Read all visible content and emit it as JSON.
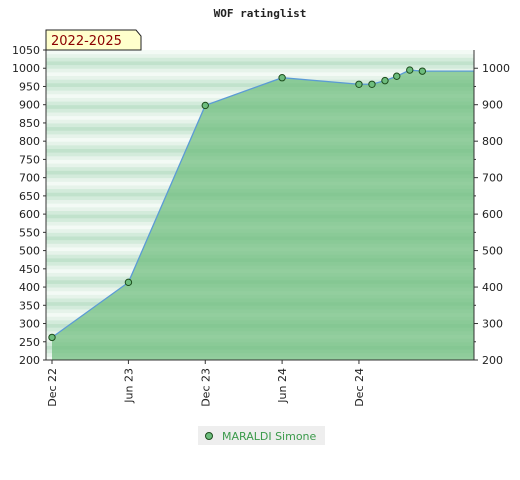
{
  "chart_data": {
    "type": "area",
    "title": "WOF ratinglist",
    "badge": "2022-2025",
    "ylim": [
      200,
      1050
    ],
    "y_ticks_left": [
      "200",
      "250",
      "300",
      "350",
      "400",
      "450",
      "500",
      "550",
      "600",
      "650",
      "700",
      "750",
      "800",
      "850",
      "900",
      "950",
      "1000",
      "1050"
    ],
    "y_ticks_right": [
      "200",
      "300",
      "400",
      "500",
      "600",
      "700",
      "800",
      "900",
      "1000"
    ],
    "x_ticks": [
      {
        "label": "Dec 22",
        "date": "2022-12-01"
      },
      {
        "label": "Jun 23",
        "date": "2023-06-01"
      },
      {
        "label": "Dec 23",
        "date": "2023-12-01"
      },
      {
        "label": "Jun 24",
        "date": "2024-06-01"
      },
      {
        "label": "Dec 24",
        "date": "2024-12-01"
      }
    ],
    "xlim": [
      "2022-12-01",
      "2025-09-01"
    ],
    "series": [
      {
        "name": "MARALDI Simone",
        "color": "#5b9bd5",
        "fill": "#6dbd7d",
        "points": [
          {
            "x": "2022-12-01",
            "y": 262
          },
          {
            "x": "2023-06-01",
            "y": 413
          },
          {
            "x": "2023-12-01",
            "y": 898
          },
          {
            "x": "2024-06-01",
            "y": 974
          },
          {
            "x": "2024-12-01",
            "y": 956
          },
          {
            "x": "2025-01-01",
            "y": 956
          },
          {
            "x": "2025-02-01",
            "y": 966
          },
          {
            "x": "2025-03-01",
            "y": 978
          },
          {
            "x": "2025-04-01",
            "y": 995
          },
          {
            "x": "2025-05-01",
            "y": 992
          }
        ]
      }
    ],
    "grid": true,
    "legend_position": "bottom"
  }
}
